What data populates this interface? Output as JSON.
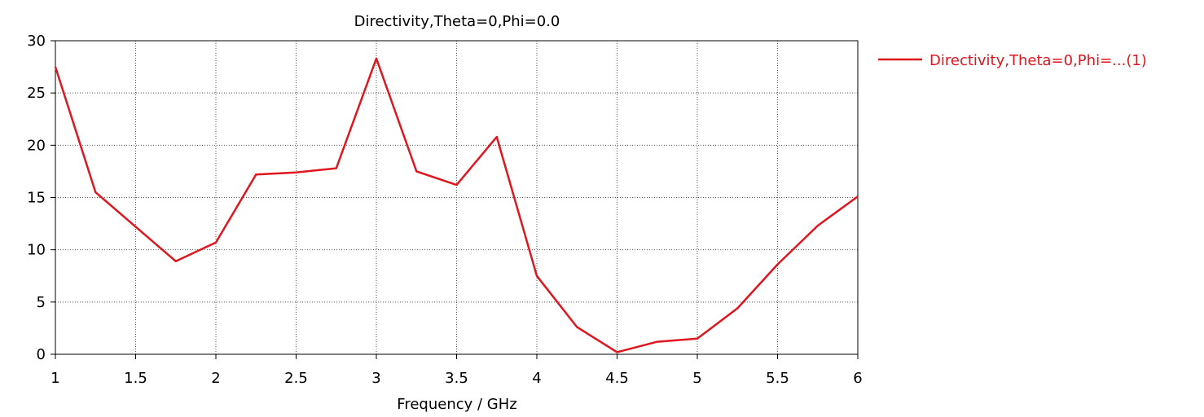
{
  "chart_data": {
    "type": "line",
    "title": "Directivity,Theta=0,Phi=0.0",
    "xlabel": "Frequency / GHz",
    "ylabel": "",
    "xlim": [
      1,
      6
    ],
    "ylim": [
      0,
      30
    ],
    "x_ticks": [
      "1",
      "1.5",
      "2",
      "2.5",
      "3",
      "3.5",
      "4",
      "4.5",
      "5",
      "5.5",
      "6"
    ],
    "y_ticks": [
      "0",
      "5",
      "10",
      "15",
      "20",
      "25",
      "30"
    ],
    "grid": true,
    "legend_position": "right",
    "series": [
      {
        "name": "Directivity,Theta=0,Phi=...(1)",
        "color": "#e0161e",
        "x": [
          1,
          1.25,
          1.5,
          1.75,
          2,
          2.25,
          2.5,
          2.75,
          3,
          3.25,
          3.5,
          3.75,
          4,
          4.25,
          4.5,
          4.75,
          5,
          5.25,
          5.5,
          5.75,
          6
        ],
        "y": [
          27.5,
          15.5,
          12.2,
          8.9,
          10.7,
          17.2,
          17.4,
          17.8,
          28.3,
          17.5,
          16.2,
          20.8,
          7.5,
          2.6,
          0.2,
          1.2,
          1.5,
          4.4,
          8.6,
          12.3,
          15.1
        ]
      }
    ]
  }
}
